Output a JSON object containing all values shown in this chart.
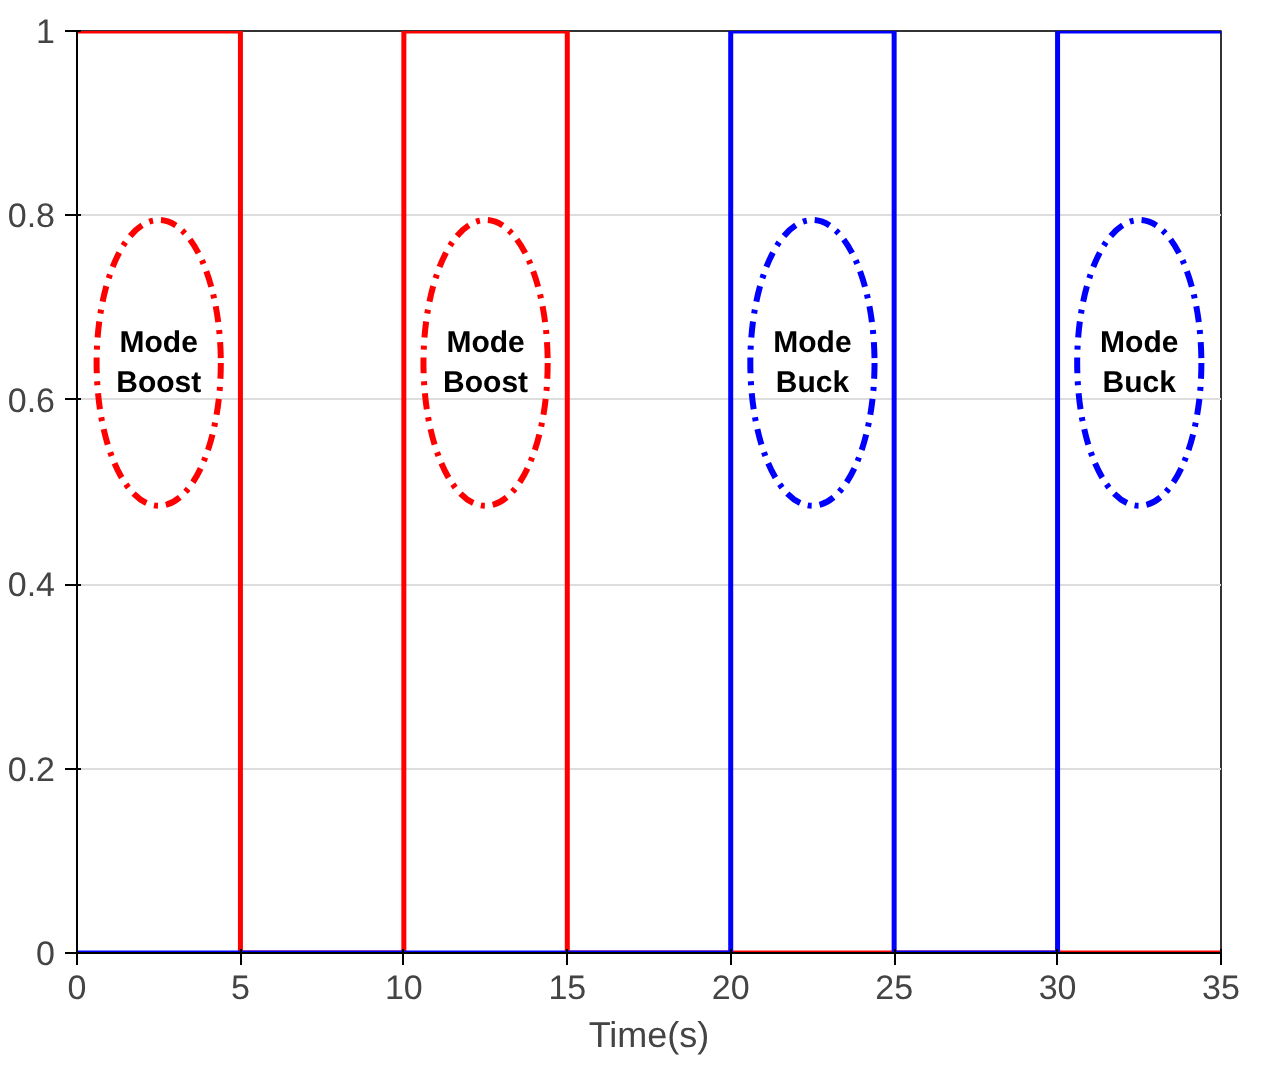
{
  "chart_data": {
    "type": "step",
    "xlabel": "Time(s)",
    "series": [
      {
        "color": "#ff0000",
        "x": [
          0,
          5,
          10,
          15,
          35
        ],
        "values": [
          1,
          0,
          1,
          0,
          0
        ]
      },
      {
        "color": "#0000ff",
        "x": [
          0,
          20,
          25,
          30,
          35
        ],
        "values": [
          0,
          1,
          0,
          1,
          1
        ]
      }
    ],
    "xlim": [
      0,
      35
    ],
    "ylim": [
      0,
      1
    ],
    "xticks": [
      0,
      5,
      10,
      15,
      20,
      25,
      30,
      35
    ],
    "yticks": [
      0,
      0.2,
      0.4,
      0.6,
      0.8,
      1
    ],
    "grid": "y",
    "annotations": [
      "Mode\nBoost",
      "Mode\nBoost",
      "Mode\nBuck",
      "Mode\nBuck"
    ]
  }
}
